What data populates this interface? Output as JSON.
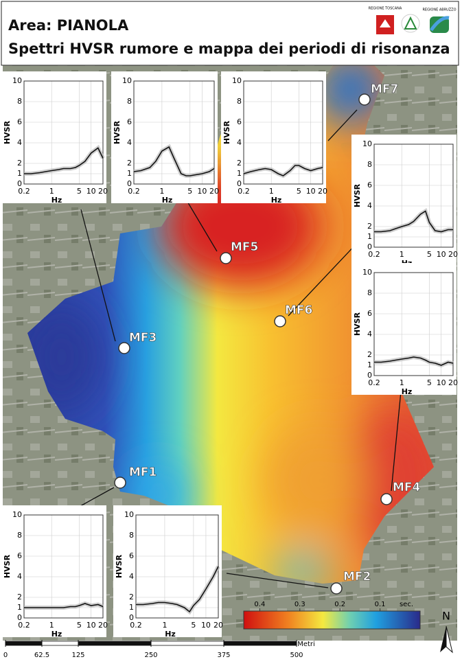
{
  "header": {
    "title": "Area: PIANOLA",
    "subtitle": "Spettri HVSR rumore e mappa dei periodi di risonanza",
    "logos": [
      "REGIONE TOSCANA",
      "REGIONE ABRUZZO"
    ]
  },
  "stations": [
    "MF3",
    "MF5",
    "MF7",
    "MF6",
    "MF4",
    "MF1",
    "MF2"
  ],
  "spectra": {
    "y_label": "HVSR",
    "x_label": "Hz",
    "xlim": [
      0.2,
      20
    ],
    "xticks": [
      0.2,
      1,
      5,
      10,
      20
    ],
    "ylim": [
      0,
      10
    ],
    "yticks": [
      0,
      1,
      2,
      4,
      6,
      8,
      10
    ],
    "freq": [
      0.2,
      0.3,
      0.5,
      0.7,
      1,
      1.5,
      2,
      3,
      4,
      5,
      7,
      10,
      15,
      20
    ],
    "curves": [
      [
        1.0,
        1.0,
        1.1,
        1.2,
        1.3,
        1.4,
        1.5,
        1.5,
        1.6,
        1.8,
        2.2,
        3.0,
        3.5,
        2.5
      ],
      [
        1.2,
        1.3,
        1.6,
        2.2,
        3.2,
        3.6,
        2.5,
        1.0,
        0.8,
        0.8,
        0.9,
        1.0,
        1.2,
        1.5
      ],
      [
        1.0,
        1.2,
        1.4,
        1.5,
        1.4,
        1.0,
        0.8,
        1.3,
        1.8,
        1.8,
        1.5,
        1.3,
        1.5,
        1.6
      ],
      [
        1.5,
        1.5,
        1.6,
        1.8,
        2.0,
        2.2,
        2.5,
        3.2,
        3.5,
        2.4,
        1.6,
        1.5,
        1.7,
        1.7
      ],
      [
        1.3,
        1.3,
        1.4,
        1.5,
        1.6,
        1.7,
        1.8,
        1.7,
        1.5,
        1.3,
        1.2,
        1.0,
        1.3,
        1.2
      ],
      [
        1.0,
        1.0,
        1.0,
        1.0,
        1.0,
        1.0,
        1.0,
        1.1,
        1.1,
        1.2,
        1.4,
        1.2,
        1.3,
        1.1
      ],
      [
        1.3,
        1.3,
        1.4,
        1.5,
        1.5,
        1.4,
        1.3,
        1.0,
        0.6,
        1.2,
        1.8,
        2.8,
        4.0,
        5.0
      ]
    ]
  },
  "colorbar": {
    "lim": [
      0.44,
      0
    ],
    "ticks": [
      0.4,
      0.3,
      0.2,
      0.1
    ],
    "unit": "sec."
  },
  "scalebar": {
    "lim": [
      0,
      500
    ],
    "ticks": [
      0,
      62.5,
      125,
      250,
      375,
      500
    ],
    "unit": "Metri"
  },
  "north": "N"
}
